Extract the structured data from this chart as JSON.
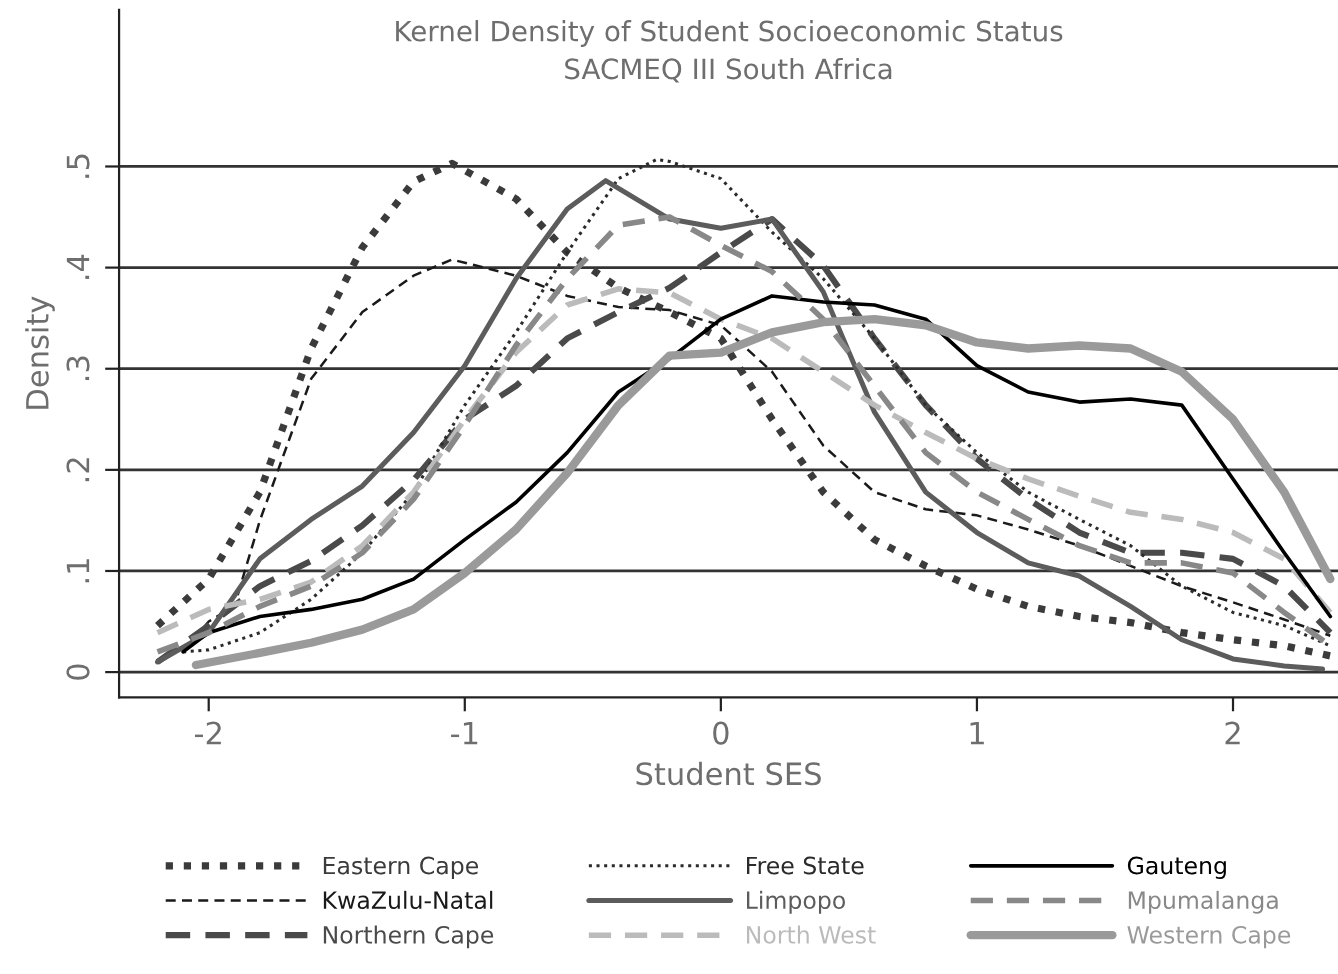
{
  "chart_data": {
    "type": "line",
    "title": "Kernel Density of Student Socioeconomic Status",
    "subtitle": "SACMEQ III South Africa",
    "xlabel": "Student SES",
    "ylabel": "Density",
    "xlim": [
      -2.35,
      2.41
    ],
    "ylim": [
      -0.025,
      0.655
    ],
    "xticks": [
      -2,
      -1,
      0,
      1,
      2
    ],
    "yticks": [
      0,
      {
        "value": 0.1,
        "label": ".1"
      },
      {
        "value": 0.2,
        "label": ".2"
      },
      {
        "value": 0.3,
        "label": ".3"
      },
      {
        "value": 0.4,
        "label": ".4"
      },
      {
        "value": 0.5,
        "label": ".5"
      }
    ],
    "grid": "y",
    "legend": "bottom",
    "marker": "none",
    "series": [
      {
        "name": "Eastern Cape",
        "color": "#3b3b3b",
        "line_style": "dotted",
        "x": [
          -2.2,
          -2.0,
          -1.8,
          -1.6,
          -1.4,
          -1.2,
          -1.05,
          -0.8,
          -0.6,
          -0.4,
          -0.2,
          0,
          0.2,
          0.4,
          0.6,
          0.8,
          1.0,
          1.2,
          1.4,
          1.6,
          1.8,
          2.0,
          2.2,
          2.38
        ],
        "values": [
          0.046,
          0.092,
          0.178,
          0.32,
          0.42,
          0.485,
          0.503,
          0.468,
          0.415,
          0.38,
          0.356,
          0.33,
          0.25,
          0.178,
          0.131,
          0.105,
          0.082,
          0.065,
          0.055,
          0.049,
          0.039,
          0.032,
          0.026,
          0.016
        ]
      },
      {
        "name": "KwaZulu-Natal",
        "color": "#1a1a1a",
        "line_style": "dashed",
        "x": [
          -2.1,
          -2.0,
          -1.9,
          -1.8,
          -1.6,
          -1.4,
          -1.2,
          -1.05,
          -0.8,
          -0.6,
          -0.4,
          -0.2,
          0,
          0.2,
          0.4,
          0.6,
          0.8,
          1.0,
          1.2,
          1.4,
          1.6,
          1.8,
          2.0,
          2.2,
          2.38
        ],
        "values": [
          0.02,
          0.05,
          0.065,
          0.15,
          0.29,
          0.356,
          0.392,
          0.408,
          0.392,
          0.372,
          0.361,
          0.358,
          0.343,
          0.297,
          0.224,
          0.178,
          0.161,
          0.155,
          0.141,
          0.125,
          0.105,
          0.085,
          0.069,
          0.052,
          0.036
        ]
      },
      {
        "name": "Northern Cape",
        "color": "#4a4a4a",
        "line_style": "dashed",
        "x": [
          -2.2,
          -2.0,
          -1.8,
          -1.6,
          -1.4,
          -1.2,
          -1.0,
          -0.8,
          -0.6,
          -0.4,
          -0.2,
          0,
          0.2,
          0.4,
          0.6,
          0.8,
          1.0,
          1.2,
          1.4,
          1.6,
          1.8,
          2.0,
          2.2,
          2.38
        ],
        "values": [
          0.01,
          0.046,
          0.085,
          0.11,
          0.145,
          0.19,
          0.25,
          0.283,
          0.33,
          0.356,
          0.38,
          0.415,
          0.448,
          0.402,
          0.33,
          0.264,
          0.211,
          0.171,
          0.138,
          0.118,
          0.118,
          0.112,
          0.085,
          0.039
        ]
      },
      {
        "name": "Free State",
        "color": "#2b2b2b",
        "line_style": "dotted",
        "x": [
          -2.1,
          -2.0,
          -1.8,
          -1.6,
          -1.4,
          -1.2,
          -1.0,
          -0.8,
          -0.6,
          -0.4,
          -0.25,
          -0.2,
          0,
          0.2,
          0.4,
          0.6,
          0.8,
          1.0,
          1.2,
          1.4,
          1.6,
          1.8,
          2.0,
          2.2,
          2.38
        ],
        "values": [
          0.02,
          0.022,
          0.039,
          0.072,
          0.118,
          0.178,
          0.264,
          0.336,
          0.415,
          0.488,
          0.507,
          0.505,
          0.488,
          0.435,
          0.389,
          0.33,
          0.264,
          0.217,
          0.178,
          0.151,
          0.125,
          0.085,
          0.059,
          0.046,
          0.026
        ]
      },
      {
        "name": "Limpopo",
        "color": "#5c5c5c",
        "line_style": "solid",
        "x": [
          -2.2,
          -2.0,
          -1.8,
          -1.6,
          -1.4,
          -1.2,
          -1.0,
          -0.8,
          -0.6,
          -0.45,
          -0.2,
          0,
          0.2,
          0.4,
          0.6,
          0.8,
          1.0,
          1.2,
          1.4,
          1.6,
          1.8,
          2.0,
          2.2,
          2.35
        ],
        "values": [
          0.01,
          0.039,
          0.112,
          0.151,
          0.184,
          0.237,
          0.303,
          0.389,
          0.458,
          0.486,
          0.448,
          0.439,
          0.448,
          0.376,
          0.257,
          0.178,
          0.138,
          0.108,
          0.095,
          0.065,
          0.032,
          0.013,
          0.006,
          0.003
        ]
      },
      {
        "name": "North West",
        "color": "#bbbbbb",
        "line_style": "dashed",
        "x": [
          -2.2,
          -2.0,
          -1.8,
          -1.6,
          -1.4,
          -1.2,
          -1.0,
          -0.8,
          -0.6,
          -0.4,
          -0.2,
          0,
          0.2,
          0.4,
          0.6,
          0.8,
          1.0,
          1.2,
          1.4,
          1.6,
          1.8,
          2.0,
          2.2,
          2.38
        ],
        "values": [
          0.039,
          0.062,
          0.072,
          0.089,
          0.125,
          0.178,
          0.25,
          0.316,
          0.363,
          0.379,
          0.375,
          0.349,
          0.33,
          0.297,
          0.264,
          0.237,
          0.211,
          0.191,
          0.174,
          0.158,
          0.151,
          0.138,
          0.112,
          0.059
        ]
      },
      {
        "name": "Gauteng",
        "color": "#000000",
        "line_style": "solid",
        "x": [
          -2.1,
          -2.0,
          -1.8,
          -1.6,
          -1.4,
          -1.2,
          -1.0,
          -0.8,
          -0.6,
          -0.4,
          -0.2,
          0,
          0.2,
          0.4,
          0.6,
          0.8,
          1.0,
          1.2,
          1.4,
          1.6,
          1.8,
          2.0,
          2.2,
          2.38
        ],
        "values": [
          0.02,
          0.039,
          0.055,
          0.062,
          0.072,
          0.092,
          0.131,
          0.168,
          0.217,
          0.277,
          0.31,
          0.349,
          0.372,
          0.366,
          0.363,
          0.349,
          0.303,
          0.277,
          0.267,
          0.27,
          0.264,
          0.191,
          0.118,
          0.055
        ]
      },
      {
        "name": "Mpumalanga",
        "color": "#888888",
        "line_style": "dashed",
        "x": [
          -2.2,
          -2.0,
          -1.8,
          -1.6,
          -1.4,
          -1.2,
          -1.0,
          -0.8,
          -0.6,
          -0.4,
          -0.2,
          0,
          0.2,
          0.4,
          0.6,
          0.8,
          1.0,
          1.2,
          1.4,
          1.6,
          1.8,
          2.0,
          2.2,
          2.38
        ],
        "values": [
          0.02,
          0.039,
          0.065,
          0.085,
          0.118,
          0.171,
          0.244,
          0.323,
          0.389,
          0.442,
          0.45,
          0.422,
          0.396,
          0.349,
          0.283,
          0.217,
          0.178,
          0.151,
          0.125,
          0.108,
          0.108,
          0.098,
          0.059,
          0.026
        ]
      },
      {
        "name": "Western Cape",
        "color": "#9a9a9a",
        "line_style": "solid",
        "x": [
          -2.05,
          -1.8,
          -1.6,
          -1.4,
          -1.2,
          -1.0,
          -0.8,
          -0.6,
          -0.4,
          -0.2,
          0,
          0.2,
          0.4,
          0.6,
          0.8,
          1.0,
          1.2,
          1.4,
          1.6,
          1.8,
          2.0,
          2.2,
          2.38
        ],
        "values": [
          0.007,
          0.019,
          0.029,
          0.042,
          0.062,
          0.098,
          0.141,
          0.197,
          0.264,
          0.313,
          0.316,
          0.336,
          0.346,
          0.349,
          0.343,
          0.326,
          0.32,
          0.323,
          0.32,
          0.297,
          0.25,
          0.178,
          0.092
        ]
      }
    ]
  }
}
